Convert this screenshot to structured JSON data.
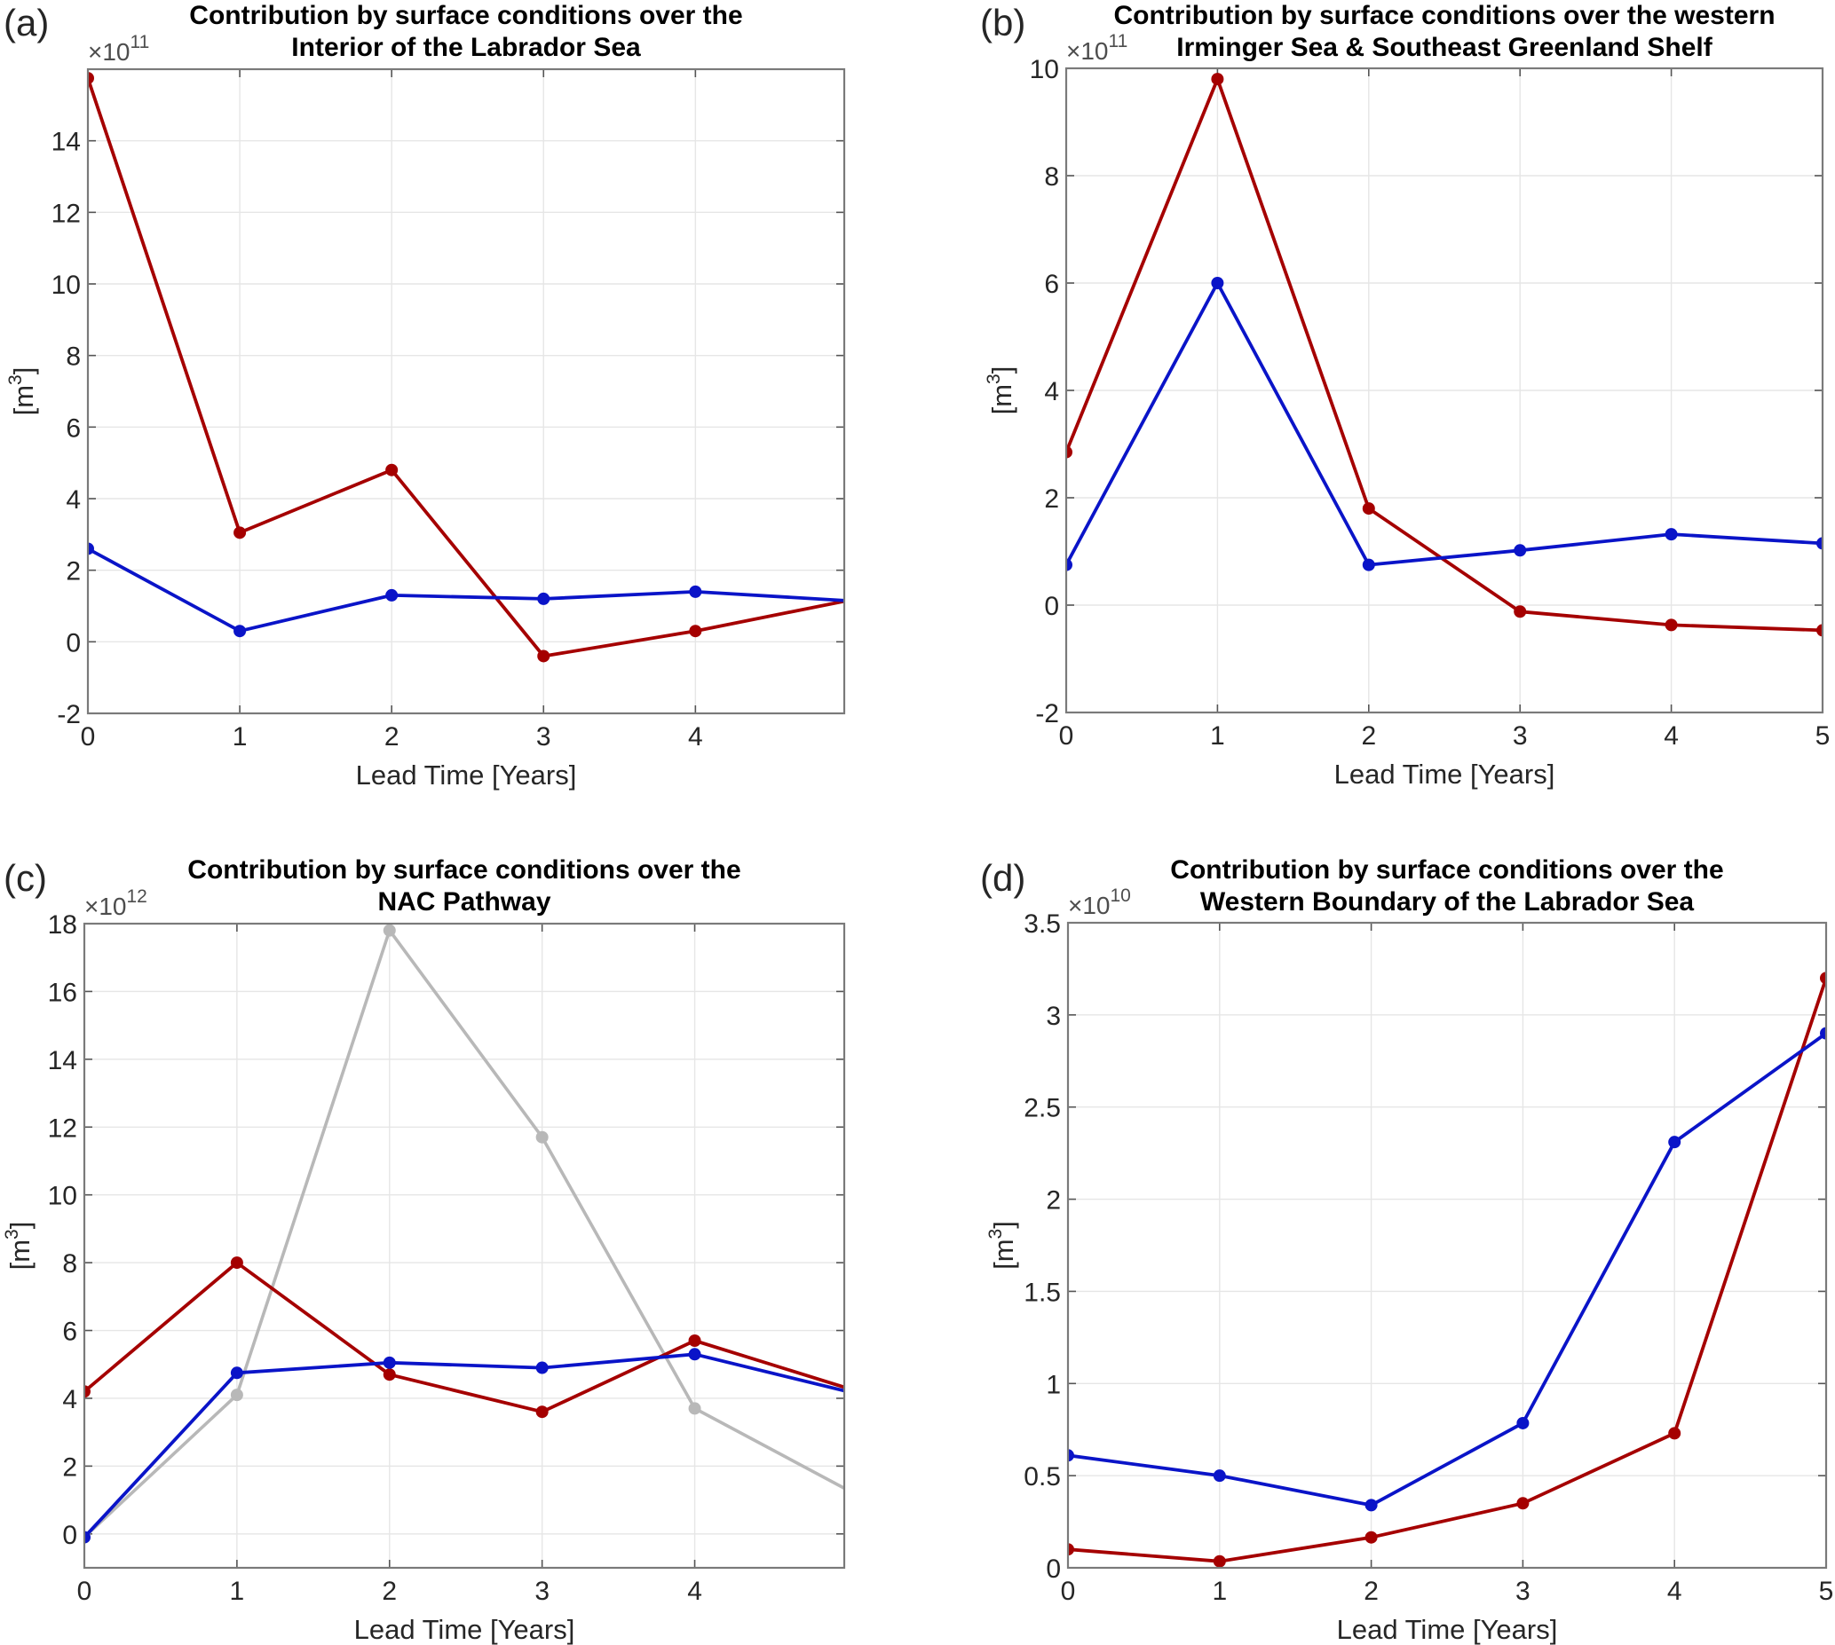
{
  "figure": {
    "panels_count": 4,
    "colors": {
      "red": "#a50000",
      "blue": "#0a14c8",
      "gray": "#b8b8b8"
    }
  },
  "chart_data": [
    {
      "type": "line",
      "panel_label": "(a)",
      "title": [
        "Contribution by surface conditions over the",
        "Interior of the Labrador Sea"
      ],
      "xlabel": "Lead Time [Years]",
      "ylabel": "[m³]",
      "ylabel_base": "[m",
      "ylabel_sup": "3",
      "ylabel_close": "]",
      "exponent_label": "×10",
      "exponent_power": "11",
      "xlim": [
        0,
        4.98
      ],
      "ylim": [
        -2,
        16
      ],
      "xticks": [
        0,
        1,
        2,
        3,
        4
      ],
      "yticks": [
        -2,
        0,
        2,
        4,
        6,
        8,
        10,
        12,
        14
      ],
      "grid": true,
      "x": [
        0,
        1,
        2,
        3,
        4,
        5
      ],
      "series": [
        {
          "name": "red",
          "color": "#a50000",
          "values": [
            15.75,
            3.05,
            4.8,
            -0.4,
            0.3,
            1.15
          ]
        },
        {
          "name": "blue",
          "color": "#0a14c8",
          "values": [
            2.6,
            0.3,
            1.3,
            1.2,
            1.4,
            1.15
          ]
        }
      ]
    },
    {
      "type": "line",
      "panel_label": "(b)",
      "title": [
        "Contribution by surface conditions over the western",
        "Irminger Sea & Southeast Greenland Shelf"
      ],
      "xlabel": "Lead Time [Years]",
      "ylabel": "[m³]",
      "ylabel_base": "[m",
      "ylabel_sup": "3",
      "ylabel_close": "]",
      "exponent_label": "×10",
      "exponent_power": "11",
      "xlim": [
        0,
        5
      ],
      "ylim": [
        -2,
        10
      ],
      "xticks": [
        0,
        1,
        2,
        3,
        4,
        5
      ],
      "yticks": [
        -2,
        0,
        2,
        4,
        6,
        8,
        10
      ],
      "grid": true,
      "x": [
        0,
        1,
        2,
        3,
        4,
        5
      ],
      "series": [
        {
          "name": "red",
          "color": "#a50000",
          "values": [
            2.85,
            9.8,
            1.8,
            -0.12,
            -0.37,
            -0.47
          ]
        },
        {
          "name": "blue",
          "color": "#0a14c8",
          "values": [
            0.75,
            6.0,
            0.75,
            1.02,
            1.32,
            1.15
          ]
        }
      ]
    },
    {
      "type": "line",
      "panel_label": "(c)",
      "title": [
        "Contribution by surface conditions over the",
        "NAC Pathway"
      ],
      "xlabel": "Lead Time [Years]",
      "ylabel": "[m³]",
      "ylabel_base": "[m",
      "ylabel_sup": "3",
      "ylabel_close": "]",
      "exponent_label": "×10",
      "exponent_power": "12",
      "xlim": [
        0,
        4.98
      ],
      "ylim": [
        -1,
        18
      ],
      "xticks": [
        0,
        1,
        2,
        3,
        4
      ],
      "yticks": [
        0,
        2,
        4,
        6,
        8,
        10,
        12,
        14,
        16,
        18
      ],
      "grid": true,
      "x": [
        0,
        1,
        2,
        3,
        4,
        5
      ],
      "series": [
        {
          "name": "gray",
          "color": "#b8b8b8",
          "values": [
            -0.1,
            4.1,
            17.8,
            11.7,
            3.7,
            1.3
          ]
        },
        {
          "name": "red",
          "color": "#a50000",
          "values": [
            4.2,
            8.0,
            4.7,
            3.6,
            5.7,
            4.3
          ]
        },
        {
          "name": "blue",
          "color": "#0a14c8",
          "values": [
            -0.1,
            4.75,
            5.05,
            4.9,
            5.3,
            4.2
          ]
        }
      ]
    },
    {
      "type": "line",
      "panel_label": "(d)",
      "title": [
        "Contribution by surface conditions over the",
        "Western Boundary of the Labrador Sea"
      ],
      "xlabel": "Lead Time [Years]",
      "ylabel": "[m³]",
      "ylabel_base": "[m",
      "ylabel_sup": "3",
      "ylabel_close": "]",
      "exponent_label": "×10",
      "exponent_power": "10",
      "xlim": [
        0,
        5
      ],
      "ylim": [
        0,
        3.5
      ],
      "xticks": [
        0,
        1,
        2,
        3,
        4,
        5
      ],
      "yticks": [
        0,
        0.5,
        1,
        1.5,
        2,
        2.5,
        3,
        3.5
      ],
      "grid": true,
      "x": [
        0,
        1,
        2,
        3,
        4,
        5
      ],
      "series": [
        {
          "name": "red",
          "color": "#a50000",
          "values": [
            0.1,
            0.035,
            0.165,
            0.35,
            0.73,
            3.2
          ]
        },
        {
          "name": "blue",
          "color": "#0a14c8",
          "values": [
            0.61,
            0.5,
            0.34,
            0.785,
            2.31,
            2.9
          ]
        }
      ]
    }
  ]
}
